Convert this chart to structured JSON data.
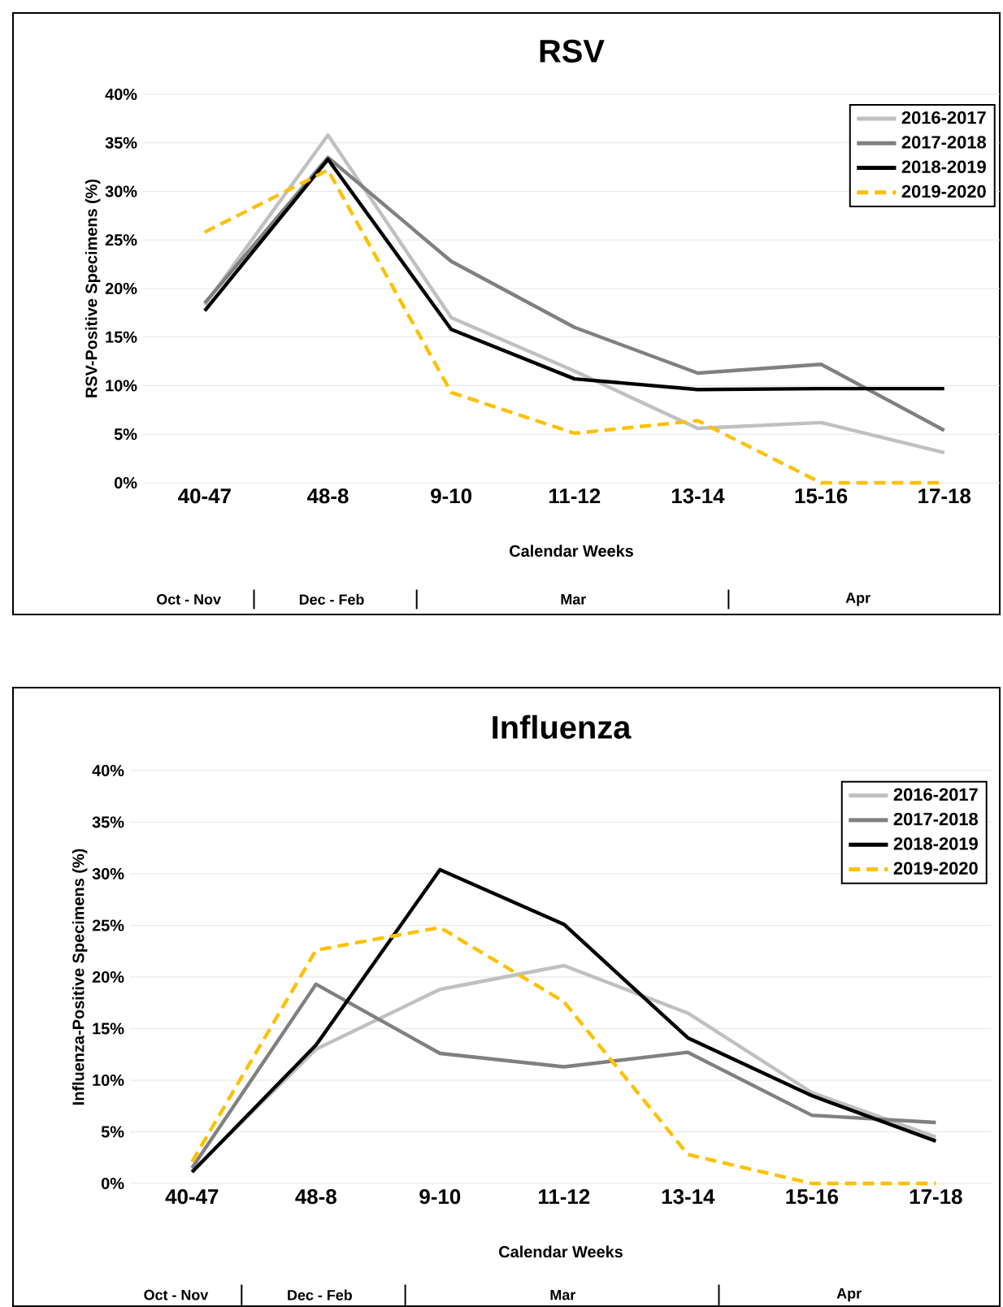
{
  "chart_data": [
    {
      "type": "line",
      "title": "RSV",
      "xlabel": "Calendar Weeks",
      "ylabel": "RSV-Positive Specimens (%)",
      "categories": [
        "40-47",
        "48-8",
        "9-10",
        "11-12",
        "13-14",
        "15-16",
        "17-18"
      ],
      "ylim": [
        0,
        40
      ],
      "yticks": [
        {
          "value": 0,
          "label": "0%"
        },
        {
          "value": 5,
          "label": "5%"
        },
        {
          "value": 10,
          "label": "10%"
        },
        {
          "value": 15,
          "label": "15%"
        },
        {
          "value": 20,
          "label": "20%"
        },
        {
          "value": 25,
          "label": "25%"
        },
        {
          "value": 30,
          "label": "30%"
        },
        {
          "value": 35,
          "label": "35%"
        },
        {
          "value": 40,
          "label": "40%"
        }
      ],
      "grid": "y",
      "legend": "top right",
      "series": [
        {
          "name": "2016-2017",
          "color": "#c0c0c0",
          "line_style": "solid",
          "values": [
            18.3,
            35.8,
            17,
            11.5,
            5.6,
            6.2,
            3.1
          ]
        },
        {
          "name": "2017-2018",
          "color": "#808080",
          "line_style": "solid",
          "values": [
            18.5,
            33.5,
            22.8,
            16,
            11.3,
            12.2,
            5.4
          ]
        },
        {
          "name": "2018-2019",
          "color": "#000000",
          "line_style": "solid",
          "values": [
            17.7,
            33.3,
            15.8,
            10.7,
            9.6,
            9.7,
            9.7
          ]
        },
        {
          "name": "2019-2020",
          "color": "#ffc000",
          "line_style": "dashed",
          "values": [
            25.8,
            32.2,
            9.3,
            5.1,
            6.4,
            0,
            0
          ]
        }
      ],
      "annotations": [
        "Oct - Nov",
        "Dec - Feb",
        "Mar",
        "Apr"
      ]
    },
    {
      "type": "line",
      "title": "Influenza",
      "xlabel": "Calendar Weeks",
      "ylabel": "Influenza-Positive Specimens (%)",
      "categories": [
        "40-47",
        "48-8",
        "9-10",
        "11-12",
        "13-14",
        "15-16",
        "17-18"
      ],
      "ylim": [
        0,
        40
      ],
      "yticks": [
        {
          "value": 0,
          "label": "0%"
        },
        {
          "value": 5,
          "label": "5%"
        },
        {
          "value": 10,
          "label": "10%"
        },
        {
          "value": 15,
          "label": "15%"
        },
        {
          "value": 20,
          "label": "20%"
        },
        {
          "value": 25,
          "label": "25%"
        },
        {
          "value": 30,
          "label": "30%"
        },
        {
          "value": 35,
          "label": "35%"
        },
        {
          "value": 40,
          "label": "40%"
        }
      ],
      "grid": "y",
      "legend": "top right",
      "series": [
        {
          "name": "2016-2017",
          "color": "#c0c0c0",
          "line_style": "solid",
          "values": [
            1.2,
            13,
            18.8,
            21.1,
            16.5,
            8.8,
            4.5
          ]
        },
        {
          "name": "2017-2018",
          "color": "#808080",
          "line_style": "solid",
          "values": [
            1.5,
            19.3,
            12.6,
            11.3,
            12.7,
            6.6,
            5.9
          ]
        },
        {
          "name": "2018-2019",
          "color": "#000000",
          "line_style": "solid",
          "values": [
            1.1,
            13.4,
            30.4,
            25.1,
            14.1,
            8.5,
            4.1
          ]
        },
        {
          "name": "2019-2020",
          "color": "#ffc000",
          "line_style": "dashed",
          "values": [
            2.1,
            22.6,
            24.8,
            17.6,
            2.8,
            0,
            0
          ]
        }
      ],
      "annotations": [
        "Oct - Nov",
        "Dec - Feb",
        "Mar",
        "Apr"
      ]
    }
  ]
}
